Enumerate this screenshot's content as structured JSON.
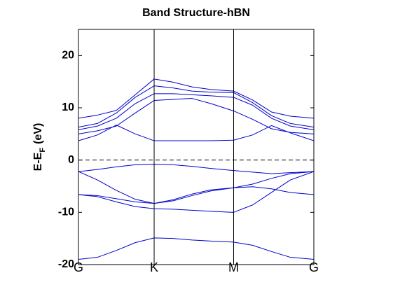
{
  "chart_data": {
    "type": "line",
    "title": "Band Structure-hBN",
    "ylabel": {
      "main": "E-E",
      "sub": "F",
      "unit": "(eV)"
    },
    "x": [
      0,
      0.25,
      0.5,
      0.75,
      1,
      1.25,
      1.5,
      1.75,
      2.05,
      2.3,
      2.55,
      2.8,
      3.11
    ],
    "xlim": [
      0,
      3.11
    ],
    "xticks": [
      {
        "value": 0,
        "label": "G"
      },
      {
        "value": 1,
        "label": "K"
      },
      {
        "value": 2.05,
        "label": "M"
      },
      {
        "value": 3.11,
        "label": "G"
      }
    ],
    "ylim": [
      -20,
      25
    ],
    "yticks": [
      -20,
      -10,
      0,
      10,
      20
    ],
    "hline": 0,
    "series": [
      {
        "color": "#0000cc",
        "values": [
          -19,
          -18.6,
          -17.3,
          -15.8,
          -14.9,
          -15,
          -15.3,
          -15.5,
          -15.7,
          -16.3,
          -17.5,
          -18.6,
          -19
        ]
      },
      {
        "color": "#0000cc",
        "values": [
          -2.2,
          -1.8,
          -1.3,
          -0.9,
          -0.8,
          -0.9,
          -1.2,
          -1.6,
          -2.0,
          -2.3,
          -2.6,
          -2.4,
          -2.2
        ]
      },
      {
        "color": "#0000cc",
        "values": [
          -2.2,
          -3.8,
          -5.8,
          -7.5,
          -8.3,
          -7.8,
          -6.8,
          -5.9,
          -5.3,
          -5.1,
          -5.5,
          -6.2,
          -6.6
        ]
      },
      {
        "color": "#0000cc",
        "values": [
          -6.6,
          -7.0,
          -8.0,
          -8.9,
          -9.3,
          -9.4,
          -9.6,
          -9.8,
          -10,
          -8.6,
          -6.2,
          -3.8,
          -2.2
        ]
      },
      {
        "color": "#0000cc",
        "values": [
          -6.6,
          -6.8,
          -7.4,
          -8.0,
          -8.3,
          -7.6,
          -6.5,
          -5.7,
          -5.3,
          -4.6,
          -3.5,
          -2.6,
          -2.2
        ]
      },
      {
        "color": "#0000cc",
        "values": [
          3.7,
          4.8,
          6.7,
          5.0,
          3.7,
          3.7,
          3.7,
          3.7,
          3.8,
          4.8,
          6.6,
          5.2,
          3.7
        ]
      },
      {
        "color": "#0000cc",
        "values": [
          5.0,
          5.6,
          6.5,
          9.0,
          11.4,
          11.6,
          11.8,
          10.8,
          9.4,
          7.8,
          6.0,
          5.3,
          5.0
        ]
      },
      {
        "color": "#0000cc",
        "values": [
          5.8,
          6.5,
          8.0,
          10.8,
          12.7,
          12.7,
          12.5,
          12.3,
          12.0,
          10.5,
          8.0,
          6.5,
          5.8
        ]
      },
      {
        "color": "#0000cc",
        "values": [
          6.3,
          7.0,
          9.0,
          12.0,
          14.2,
          13.8,
          13.2,
          13.0,
          12.9,
          11.0,
          8.5,
          7.0,
          6.3
        ]
      },
      {
        "color": "#0000cc",
        "values": [
          8.0,
          8.6,
          9.5,
          12.5,
          15.5,
          14.9,
          14.0,
          13.5,
          13.2,
          11.5,
          9.2,
          8.4,
          8.0
        ]
      }
    ]
  }
}
